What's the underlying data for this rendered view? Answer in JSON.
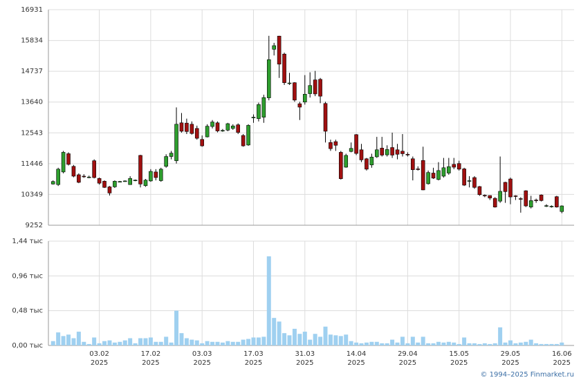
{
  "chart_data": [
    {
      "type": "candlestick",
      "up_color": "#2e9e2e",
      "down_color": "#a01010",
      "open": [
        10720,
        10700,
        11150,
        11800,
        11350,
        11050,
        11000,
        10960,
        11550,
        10920,
        10820,
        10620,
        10620,
        10800,
        10820,
        10700,
        10850,
        11740,
        10660,
        10830,
        11150,
        10840,
        11350,
        11700,
        11550,
        12900,
        12890,
        12850,
        12700,
        12310,
        12400,
        12770,
        12900,
        12620,
        12640,
        12700,
        12830,
        12450,
        12110,
        13080,
        13050,
        13100,
        13790,
        15520,
        15990,
        15350,
        14300,
        14330,
        13580,
        13640,
        13940,
        14430,
        14450,
        13590,
        12200,
        12230,
        11850,
        11320,
        11880,
        12480,
        11940,
        11620,
        11400,
        11690,
        12000,
        11760,
        12020,
        11940,
        11890,
        11780,
        11620,
        11260,
        11560,
        10730,
        11110,
        10880,
        11000,
        11110,
        11420,
        11450,
        11260,
        10830,
        10950,
        10630,
        10320,
        10310,
        10210,
        10110,
        10780,
        10900,
        10300,
        10200,
        10480,
        9900,
        10150,
        10330,
        9940,
        9920,
        10270,
        9740
      ],
      "high": [
        10850,
        11300,
        11900,
        11850,
        11400,
        11100,
        11070,
        11020,
        11600,
        10950,
        10850,
        10650,
        10850,
        10830,
        10850,
        11000,
        10880,
        11760,
        10900,
        11250,
        11250,
        11300,
        11780,
        11900,
        13450,
        13250,
        13050,
        12950,
        12800,
        12450,
        12850,
        13000,
        12950,
        12680,
        12900,
        12850,
        12880,
        12500,
        12850,
        13200,
        13620,
        13900,
        16000,
        15750,
        16000,
        15400,
        14680,
        14350,
        13650,
        14600,
        14700,
        14750,
        14500,
        13650,
        12300,
        12300,
        11900,
        11800,
        12200,
        12500,
        12150,
        11650,
        11800,
        12400,
        12400,
        12100,
        12550,
        12150,
        12500,
        11850,
        11700,
        11350,
        12050,
        11200,
        11300,
        11500,
        11650,
        11650,
        11650,
        11550,
        11300,
        11000,
        11000,
        10650,
        10350,
        10320,
        10250,
        11700,
        10800,
        10950,
        10320,
        10250,
        10500,
        10300,
        10200,
        10350,
        10000,
        9960,
        10300,
        9960
      ],
      "low": [
        10700,
        10650,
        11100,
        11380,
        10960,
        10750,
        10940,
        10930,
        10920,
        10700,
        10580,
        10310,
        10580,
        10780,
        10800,
        10690,
        10820,
        10600,
        10620,
        10800,
        10850,
        10800,
        11300,
        11600,
        11450,
        12550,
        12500,
        12480,
        12300,
        12050,
        12380,
        12700,
        12560,
        12580,
        12600,
        12650,
        12500,
        12050,
        12080,
        12900,
        12950,
        12900,
        13700,
        15300,
        14500,
        14250,
        14250,
        13650,
        13000,
        13550,
        13800,
        13850,
        13600,
        12200,
        11900,
        11900,
        10880,
        11300,
        11850,
        11750,
        11500,
        11200,
        11300,
        11650,
        11700,
        11700,
        11650,
        11600,
        11700,
        11700,
        10850,
        11200,
        10500,
        10700,
        10900,
        10850,
        10950,
        11050,
        11250,
        11200,
        10650,
        10600,
        10550,
        10300,
        10250,
        10150,
        9880,
        10050,
        10050,
        10000,
        10150,
        9700,
        9900,
        9850,
        10050,
        10100,
        9900,
        9880,
        9880,
        9680
      ],
      "close": [
        10810,
        11250,
        11850,
        11420,
        11000,
        10780,
        10980,
        10970,
        10950,
        10750,
        10600,
        10400,
        10820,
        10810,
        10830,
        10920,
        10860,
        10720,
        10860,
        11170,
        10950,
        11250,
        11700,
        11820,
        12850,
        12600,
        12590,
        12520,
        12350,
        12080,
        12780,
        12930,
        12610,
        12630,
        12870,
        12790,
        12560,
        12080,
        12810,
        13100,
        13550,
        13800,
        15150,
        15650,
        14990,
        14330,
        14320,
        13710,
        13460,
        13920,
        14230,
        13930,
        13850,
        12600,
        11980,
        12100,
        10910,
        11740,
        11990,
        11810,
        11580,
        11250,
        11680,
        11940,
        11750,
        11950,
        11750,
        11780,
        11800,
        11770,
        11230,
        11240,
        10510,
        11130,
        10930,
        11200,
        11300,
        11340,
        11320,
        11250,
        10680,
        10840,
        10600,
        10340,
        10310,
        10220,
        9900,
        10460,
        10450,
        10260,
        10280,
        10190,
        9940,
        10130,
        10140,
        10130,
        9950,
        9930,
        9900,
        9940
      ],
      "ylim": [
        9252,
        16931
      ],
      "yticks": [
        9252,
        10349,
        11446,
        12543,
        13640,
        14737,
        15834,
        16931
      ],
      "grid": true
    },
    {
      "type": "bar",
      "color": "#9fd0f0",
      "categories": [
        null,
        null,
        null,
        null,
        null,
        null,
        null,
        null,
        null,
        "03.02\n2025",
        null,
        null,
        null,
        null,
        null,
        null,
        null,
        null,
        null,
        "17.02\n2025",
        null,
        null,
        null,
        null,
        null,
        null,
        null,
        null,
        null,
        "03.03\n2025",
        null,
        null,
        null,
        null,
        null,
        null,
        null,
        null,
        null,
        "17.03\n2025",
        null,
        null,
        null,
        null,
        null,
        null,
        null,
        null,
        null,
        "31.03\n2025",
        null,
        null,
        null,
        null,
        null,
        null,
        null,
        null,
        null,
        "14.04\n2025",
        null,
        null,
        null,
        null,
        null,
        null,
        null,
        null,
        null,
        "29.04\n2025",
        null,
        null,
        null,
        null,
        null,
        null,
        null,
        null,
        null,
        "15.05\n2025",
        null,
        null,
        null,
        null,
        null,
        null,
        null,
        null,
        null,
        "29.05\n2025",
        null,
        null,
        null,
        null,
        null,
        null,
        null,
        null,
        null,
        "16.06\n2025"
      ],
      "values": [
        0.06,
        0.18,
        0.13,
        0.15,
        0.1,
        0.19,
        0.05,
        0.02,
        0.11,
        0.03,
        0.06,
        0.07,
        0.04,
        0.05,
        0.07,
        0.1,
        0.03,
        0.1,
        0.1,
        0.11,
        0.05,
        0.05,
        0.12,
        0.04,
        0.48,
        0.17,
        0.1,
        0.08,
        0.07,
        0.03,
        0.06,
        0.05,
        0.05,
        0.04,
        0.06,
        0.05,
        0.05,
        0.08,
        0.09,
        0.11,
        0.11,
        0.12,
        1.23,
        0.38,
        0.33,
        0.17,
        0.14,
        0.23,
        0.16,
        0.19,
        0.08,
        0.16,
        0.12,
        0.26,
        0.15,
        0.14,
        0.13,
        0.15,
        0.06,
        0.04,
        0.03,
        0.04,
        0.05,
        0.05,
        0.03,
        0.03,
        0.08,
        0.04,
        0.12,
        0.03,
        0.12,
        0.04,
        0.12,
        0.03,
        0.03,
        0.05,
        0.04,
        0.05,
        0.04,
        0.02,
        0.11,
        0.03,
        0.03,
        0.02,
        0.03,
        0.02,
        0.03,
        0.25,
        0.04,
        0.07,
        0.03,
        0.04,
        0.05,
        0.08,
        0.03,
        0.02,
        0.02,
        0.02,
        0.02,
        0.04
      ],
      "ylim": [
        0,
        1.44
      ],
      "yticks": [
        {
          "value": 0,
          "label": "0,00 тыс"
        },
        {
          "value": 0.48,
          "label": "0,48 тыс"
        },
        {
          "value": 0.96,
          "label": "0,96 тыс"
        },
        {
          "value": 1.44,
          "label": "1,44 тыс"
        }
      ],
      "grid": true
    }
  ],
  "credit": "© 1994–2025 Finmarket.ru"
}
